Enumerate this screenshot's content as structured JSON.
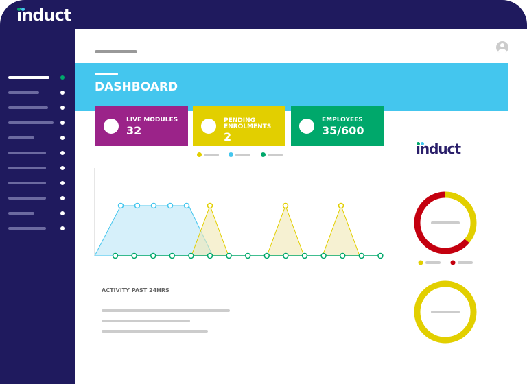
{
  "brand": {
    "name": "induct",
    "dot_colors": [
      "#00a86b",
      "#44c6ee"
    ],
    "stem_color": "#9b2389"
  },
  "header": {
    "title": "DASHBOARD"
  },
  "sidebar": {
    "active_dot_color": "#00a86b",
    "item_count": 11
  },
  "cards": [
    {
      "label": "LIVE MODULES",
      "value": "32",
      "color": "#9b2389"
    },
    {
      "label": "PENDING ENROLMENTS",
      "value": "2",
      "color": "#e2cf00"
    },
    {
      "label": "EMPLOYEES",
      "value": "35/600",
      "color": "#00a86b"
    }
  ],
  "legend_colors": [
    "#e2cf00",
    "#44c6ee",
    "#00a86b"
  ],
  "activity": {
    "title": "ACTIVITY PAST 24HRS"
  },
  "donut1": {
    "segments": [
      {
        "color": "#e2cf00",
        "fraction": 0.36
      },
      {
        "color": "#c4000f",
        "fraction": 0.64
      }
    ]
  },
  "donut2": {
    "segments": [
      {
        "color": "#e2cf00",
        "fraction": 1
      }
    ]
  }
}
